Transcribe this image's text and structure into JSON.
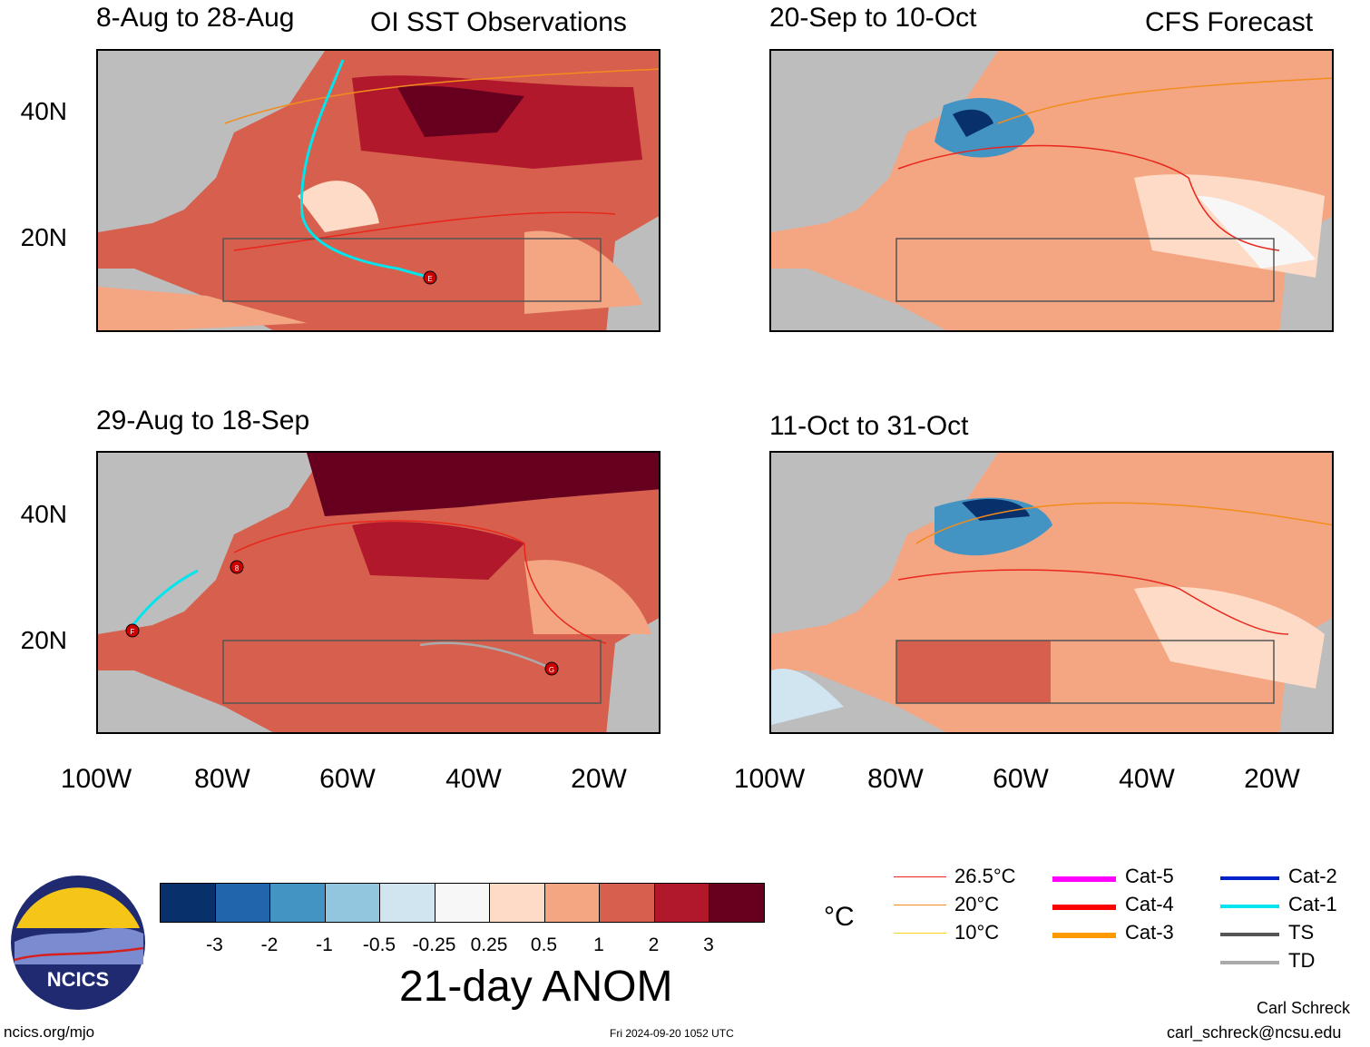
{
  "panels": {
    "p1": {
      "period": "8-Aug to 28-Aug",
      "label": "OI SST Observations"
    },
    "p2": {
      "period": "20-Sep to 10-Oct",
      "label": "CFS Forecast"
    },
    "p3": {
      "period": "29-Aug to 18-Sep",
      "label": ""
    },
    "p4": {
      "period": "11-Oct to 31-Oct",
      "label": ""
    }
  },
  "axes": {
    "lat_labels": [
      "40N",
      "20N"
    ],
    "lon_labels": [
      "100W",
      "80W",
      "60W",
      "40W",
      "20W"
    ]
  },
  "storms": [
    "E",
    "F",
    "G",
    "8"
  ],
  "colorbar": {
    "title": "21-day ANOM",
    "labels": [
      "-3",
      "-2",
      "-1",
      "-0.5",
      "-0.25",
      "0.25",
      "0.5",
      "1",
      "2",
      "3"
    ],
    "colors": [
      "#08306b",
      "#2166ac",
      "#4393c3",
      "#92c5de",
      "#d1e5f0",
      "#f7f7f7",
      "#fddbc7",
      "#f4a582",
      "#d6604d",
      "#b2182b",
      "#67001f"
    ]
  },
  "unit": "°C",
  "legend": {
    "isotherms": [
      {
        "label": "26.5°C",
        "color": "#e8261c"
      },
      {
        "label": "20°C",
        "color": "#f28c1c"
      },
      {
        "label": "10°C",
        "color": "#f7d21c"
      }
    ],
    "categories_a": [
      {
        "label": "Cat-5",
        "color": "#ff00ff"
      },
      {
        "label": "Cat-4",
        "color": "#ff0000"
      },
      {
        "label": "Cat-3",
        "color": "#ff9900"
      }
    ],
    "categories_b": [
      {
        "label": "Cat-2",
        "color": "#0022cc"
      },
      {
        "label": "Cat-1",
        "color": "#00e5ee"
      },
      {
        "label": "TS",
        "color": "#555555"
      },
      {
        "label": "TD",
        "color": "#aaaaaa"
      }
    ]
  },
  "logo": {
    "text": "NCICS"
  },
  "footer": {
    "site": "ncics.org/mjo",
    "timestamp": "Fri 2024-09-20 1052 UTC",
    "author": "Carl Schreck",
    "email": "carl_schreck@ncsu.edu"
  }
}
